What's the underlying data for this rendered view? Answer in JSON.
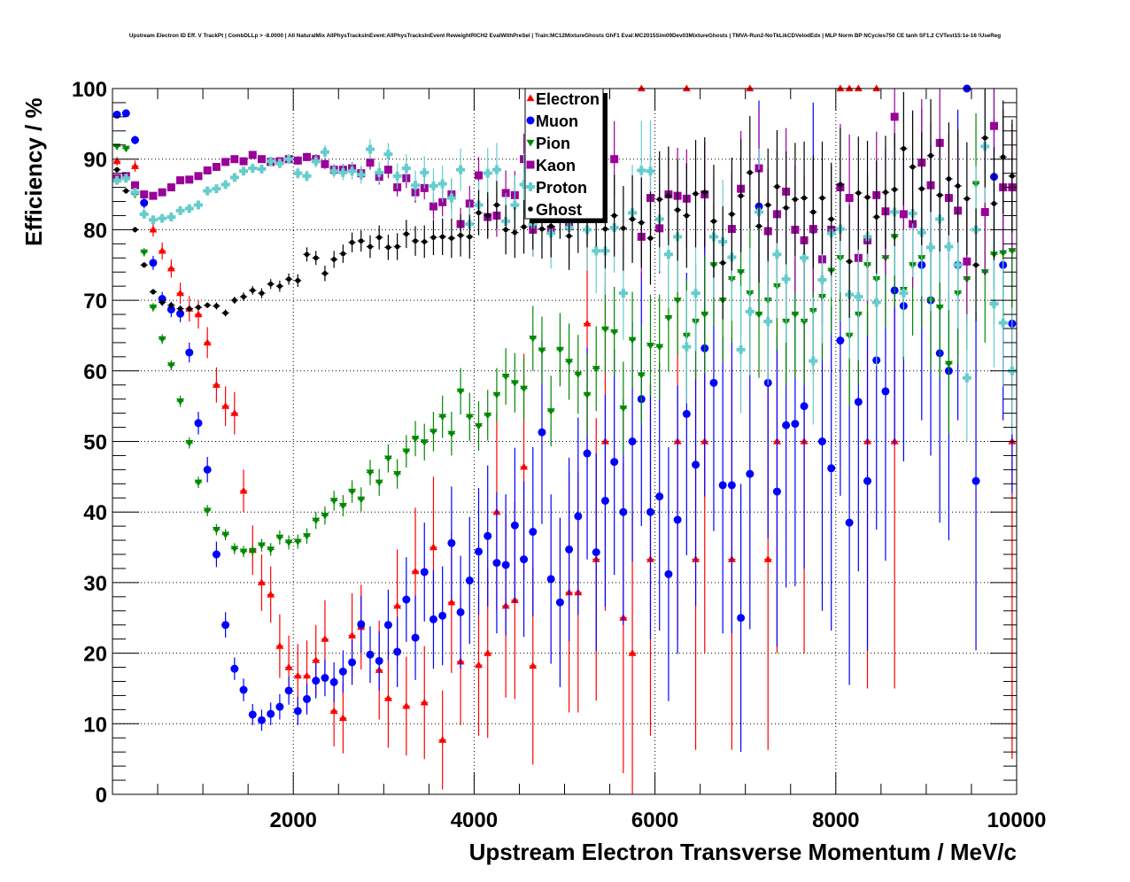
{
  "chart_data": {
    "type": "scatter",
    "title": "Upstream Electron ID Eff. V TrackPt | CombDLLp > -8.0000 | All NaturalMix AllPhysTracksInEvent:AllPhysTracksInEvent ReweightRICH2 EvalWithPreSel | Train:MC12MixtureGhosts GhF1 Eval:MC2015Sim09Dev03MixtureGhosts | TMVA-Run2-NoTkLikCDVelodEdx | MLP Norm BP NCycles750 CE tanh SF1.2 CVTest15:1e-16 !UseReg",
    "xlabel": "Upstream Electron Transverse Momentum / MeV/c",
    "ylabel": "Efficiency / %",
    "xlim": [
      0,
      10000
    ],
    "ylim": [
      0,
      100
    ],
    "xticks": [
      "2000",
      "4000",
      "6000",
      "8000",
      "10000"
    ],
    "xtick_values": [
      2000,
      4000,
      6000,
      8000,
      10000
    ],
    "yticks": [
      "0",
      "10",
      "20",
      "30",
      "40",
      "50",
      "60",
      "70",
      "80",
      "90",
      "100"
    ],
    "grid": true,
    "legend_position": "top-center",
    "bin_width": 100,
    "x_start": 50,
    "series": [
      {
        "name": "Electron",
        "color": "#ff0000",
        "marker": "triangle-up",
        "y": [
          89.7,
          null,
          89,
          null,
          80,
          77,
          74.5,
          71,
          68.8,
          68,
          64,
          58,
          55,
          54,
          43,
          34.6,
          30,
          28.3,
          21,
          18,
          16.8,
          16.8,
          19,
          22,
          11.8,
          10.8,
          22.5,
          23.7,
          null,
          17.6,
          13.6,
          26.7,
          12.5,
          31.6,
          13,
          35,
          7.7,
          27.2,
          18.8,
          null,
          18.3,
          20,
          40,
          26.7,
          27.5,
          46.4,
          18.2,
          null,
          null,
          null,
          28.6,
          28.6,
          66.7,
          33.3,
          50,
          null,
          25,
          20,
          100,
          33.3,
          null,
          null,
          50,
          100,
          33.3,
          50,
          null,
          null,
          33.3,
          null,
          100,
          null,
          33.3,
          50,
          null,
          null,
          50,
          null,
          null,
          null,
          100,
          100,
          100,
          50,
          100,
          null,
          50,
          null,
          null,
          null,
          null,
          null,
          null,
          null,
          null,
          null,
          null,
          null,
          null,
          50
        ],
        "err": [
          0.6,
          null,
          0.8,
          null,
          1,
          1.2,
          1.3,
          1.5,
          1.8,
          2,
          2.2,
          2.5,
          2.8,
          3,
          3,
          3.5,
          4,
          4,
          4.5,
          4.5,
          4.5,
          5,
          5,
          5.5,
          5,
          5,
          6,
          6,
          null,
          7,
          7,
          8,
          7,
          9,
          8,
          10,
          7,
          10,
          9,
          null,
          10,
          12,
          14,
          13,
          14,
          16,
          14,
          null,
          null,
          null,
          17,
          17,
          20,
          20,
          24,
          null,
          22,
          20,
          0,
          25,
          null,
          null,
          28,
          0,
          27,
          30,
          null,
          null,
          27,
          null,
          0,
          null,
          27,
          30,
          null,
          null,
          30,
          null,
          null,
          null,
          0,
          0,
          0,
          35,
          0,
          null,
          35,
          null,
          null,
          null,
          null,
          null,
          null,
          null,
          null,
          null,
          null,
          null,
          null,
          45
        ]
      },
      {
        "name": "Muon",
        "color": "#0000ff",
        "marker": "circle",
        "y": [
          96.3,
          96.5,
          92.7,
          83.8,
          75.3,
          70.2,
          68.7,
          68.1,
          62.6,
          52.6,
          46,
          34,
          24,
          17.8,
          14.8,
          11.3,
          10.5,
          11.4,
          12.4,
          14.7,
          11.8,
          13.5,
          16.1,
          16.5,
          15.9,
          17.4,
          18.7,
          24.1,
          19.8,
          18.9,
          24,
          20.2,
          27.6,
          22.2,
          31.5,
          24.8,
          25.3,
          35.6,
          25.8,
          30.3,
          34.4,
          36.6,
          32.8,
          32.5,
          38.1,
          33.3,
          37.2,
          51.3,
          30.5,
          27.2,
          34.7,
          39.4,
          48.3,
          34.3,
          41.6,
          47.1,
          40,
          50,
          56,
          40,
          42.2,
          31.2,
          38.9,
          53.9,
          46.7,
          63.2,
          58.3,
          43.8,
          43.8,
          25,
          45.4,
          83.3,
          58.3,
          42.9,
          52.3,
          52.5,
          55,
          80,
          50,
          46.2,
          64.3,
          38.5,
          55.6,
          44.4,
          61.5,
          57.1,
          71.4,
          69.2,
          null,
          75,
          70,
          62.5,
          60,
          75,
          100,
          44.4,
          null,
          87.5,
          75,
          66.7
        ],
        "err": [
          0.4,
          0.4,
          0.6,
          0.8,
          1,
          1,
          1.1,
          1.2,
          1.4,
          1.6,
          1.8,
          1.8,
          1.8,
          1.6,
          1.6,
          1.5,
          1.5,
          1.6,
          1.8,
          2,
          2,
          2.2,
          2.5,
          2.6,
          2.8,
          3,
          3.2,
          4,
          4,
          4.2,
          5,
          5,
          6,
          6,
          7,
          7,
          7,
          8,
          8,
          9,
          9,
          10,
          10,
          10,
          11,
          11,
          12,
          13,
          12,
          12,
          13,
          14,
          15,
          14,
          15,
          16,
          16,
          17,
          18,
          18,
          19,
          18,
          19,
          20,
          20,
          21,
          21,
          21,
          21,
          19,
          22,
          15,
          22,
          22,
          23,
          23,
          23,
          18,
          24,
          23,
          22,
          23,
          24,
          24,
          24,
          24,
          22,
          22,
          null,
          22,
          22,
          24,
          24,
          22,
          0,
          24,
          null,
          16,
          22,
          24
        ]
      },
      {
        "name": "Pion",
        "color": "#008800",
        "marker": "triangle-down",
        "y": [
          91.8,
          91.5,
          85,
          76.8,
          69,
          64.5,
          60.8,
          55.7,
          49.8,
          44.2,
          40.2,
          37.5,
          36.8,
          34.8,
          34.4,
          34.5,
          35.3,
          34.7,
          36.4,
          35.7,
          35.8,
          36.6,
          38.8,
          39.5,
          41.6,
          40.9,
          42.9,
          41.8,
          45.6,
          44.2,
          47.6,
          45.4,
          48.6,
          50.4,
          49.9,
          51.4,
          53.5,
          51.1,
          57.1,
          53.5,
          52.2,
          53.7,
          56.6,
          59.2,
          58.3,
          57.5,
          64.6,
          62.9,
          54.3,
          63,
          61.3,
          59.5,
          56.6,
          60.3,
          65.9,
          65.5,
          54.7,
          64.4,
          59.4,
          63.6,
          63.4,
          67.5,
          70,
          65,
          67,
          68,
          75,
          70,
          73,
          74,
          71,
          68,
          70,
          72,
          67,
          68,
          67,
          68.5,
          70.5,
          74.2,
          76,
          65,
          68,
          75,
          73,
          76,
          79,
          71.5,
          75,
          76,
          70,
          69,
          61,
          71,
          73,
          86.5,
          74,
          76.5,
          76.7,
          77
        ],
        "err": [
          0.4,
          0.4,
          0.5,
          0.6,
          0.6,
          0.7,
          0.7,
          0.8,
          0.8,
          0.8,
          0.8,
          0.8,
          0.8,
          0.8,
          0.8,
          0.8,
          0.9,
          0.9,
          1,
          1,
          1,
          1.1,
          1.2,
          1.3,
          1.4,
          1.5,
          1.6,
          1.7,
          1.8,
          1.9,
          2,
          2.1,
          2.3,
          2.5,
          2.6,
          2.8,
          3,
          3.1,
          3.3,
          3.4,
          3.5,
          3.6,
          3.8,
          4,
          4.2,
          4.4,
          4.6,
          4.8,
          5,
          5.2,
          5.4,
          5.6,
          5.8,
          6,
          6.2,
          6.4,
          6.6,
          6.8,
          7,
          7.2,
          7.4,
          7.6,
          7.8,
          8,
          8.2,
          8.4,
          8.6,
          8.8,
          9,
          9,
          9,
          9,
          9,
          9,
          9,
          9,
          9,
          9,
          9,
          9,
          9,
          10,
          10,
          10,
          10,
          10,
          10,
          10,
          10,
          10,
          10,
          10,
          10,
          10,
          10,
          10,
          10,
          10,
          10,
          10
        ]
      },
      {
        "name": "Kaon",
        "color": "#990099",
        "marker": "square",
        "y": [
          87.3,
          87.6,
          86.3,
          85,
          84.8,
          85.3,
          86,
          87,
          87.1,
          87.6,
          88.4,
          88.9,
          89.6,
          90,
          89.7,
          90.6,
          90,
          89.6,
          89.7,
          90,
          89.8,
          90.3,
          90,
          89.3,
          88.5,
          88.5,
          88.7,
          88,
          89.5,
          87.5,
          88.5,
          86,
          87.3,
          85.3,
          85.9,
          83.3,
          83.9,
          85,
          80.8,
          83.7,
          87.7,
          81.8,
          82,
          85.2,
          84.9,
          90,
          80,
          null,
          80,
          null,
          80.5,
          84.5,
          null,
          82.5,
          null,
          90,
          null,
          null,
          79,
          84.5,
          80.2,
          85,
          84.8,
          84.4,
          null,
          85,
          null,
          null,
          80.1,
          85.8,
          null,
          88.7,
          79.8,
          82.2,
          85.4,
          80,
          78.5,
          80.1,
          75.8,
          80,
          86,
          84.5,
          76,
          78.5,
          84.9,
          82.6,
          96,
          82.2,
          80.8,
          89.5,
          86.3,
          92.3,
          84.5,
          82.7,
          75.5,
          null,
          82.5,
          94.7,
          86,
          86
        ],
        "err": [
          0.4,
          0.4,
          0.4,
          0.4,
          0.4,
          0.4,
          0.4,
          0.4,
          0.4,
          0.4,
          0.4,
          0.4,
          0.4,
          0.4,
          0.4,
          0.4,
          0.5,
          0.5,
          0.5,
          0.5,
          0.6,
          0.6,
          0.7,
          0.7,
          0.8,
          0.8,
          0.9,
          1,
          1,
          1.1,
          1.2,
          1.3,
          1.4,
          1.5,
          1.6,
          1.8,
          2,
          2.1,
          2.3,
          2.5,
          2.6,
          2.8,
          3,
          3.2,
          3.4,
          3.6,
          3.8,
          null,
          4,
          null,
          4.4,
          4.6,
          null,
          5,
          null,
          5.4,
          null,
          null,
          6,
          6.2,
          6.4,
          6.6,
          6.8,
          7,
          null,
          7.4,
          null,
          null,
          8,
          8.2,
          null,
          8.6,
          8.8,
          9,
          9,
          9,
          9,
          9,
          9,
          9,
          9,
          9,
          9,
          9,
          9,
          9,
          8,
          9,
          9,
          9,
          9,
          8,
          9,
          9,
          9,
          null,
          9,
          6,
          9,
          9
        ]
      },
      {
        "name": "Proton",
        "color": "#66cccc",
        "marker": "star",
        "y": [
          87,
          87.3,
          85.3,
          82.2,
          81.4,
          81.6,
          81.8,
          82.7,
          83,
          83.5,
          85.5,
          85.8,
          86.4,
          87.4,
          88.3,
          88.7,
          88.6,
          89.7,
          89.4,
          90,
          88,
          87.6,
          89.7,
          91,
          88.3,
          88.1,
          88.3,
          87.8,
          91.4,
          88.1,
          90.7,
          87.6,
          88.7,
          86.3,
          88.1,
          86.2,
          86.5,
          84.5,
          88.5,
          80.8,
          83.5,
          88,
          88.5,
          81.2,
          83.5,
          86.4,
          80.8,
          81.9,
          79.5,
          84.5,
          80.3,
          84,
          80,
          77,
          77,
          80.3,
          71,
          82.4,
          88.4,
          88.3,
          81.5,
          76.5,
          79,
          63.4,
          71,
          null,
          79,
          78.3,
          76.1,
          63,
          68.4,
          82.5,
          67,
          76.5,
          73,
          null,
          76,
          61.4,
          72.9,
          79.5,
          80.1,
          70.8,
          70.5,
          79,
          69.7,
          null,
          82.5,
          71,
          82.3,
          79.6,
          77.5,
          81.5,
          77.6,
          75,
          59,
          80,
          91.8,
          69.5,
          66.8,
          60
        ],
        "err": [
          0.4,
          0.4,
          0.4,
          0.4,
          0.4,
          0.4,
          0.4,
          0.4,
          0.4,
          0.4,
          0.4,
          0.4,
          0.5,
          0.5,
          0.5,
          0.6,
          0.6,
          0.6,
          0.7,
          0.7,
          0.8,
          0.8,
          0.9,
          1,
          1,
          1.1,
          1.2,
          1.3,
          1.4,
          1.5,
          1.6,
          1.8,
          2,
          2.1,
          2.3,
          2.5,
          2.6,
          2.8,
          3,
          3.2,
          3.4,
          3.6,
          3.8,
          4,
          4.2,
          4.4,
          4.6,
          4.8,
          5,
          5.2,
          5.4,
          5.6,
          5.8,
          6,
          6.2,
          6.4,
          6.6,
          6.8,
          7,
          7.2,
          7.4,
          7.6,
          7.8,
          8,
          8.2,
          null,
          8.6,
          8.8,
          9,
          9,
          9,
          9,
          9,
          9,
          9,
          null,
          9,
          9,
          9,
          9,
          9,
          9,
          9,
          9,
          9,
          null,
          9,
          9,
          9,
          9,
          9,
          9,
          9,
          9,
          9,
          9,
          8,
          9,
          9,
          9
        ]
      },
      {
        "name": "Ghost",
        "color": "#000000",
        "marker": "dot",
        "y": [
          88.5,
          85.5,
          80,
          75,
          71.2,
          69.7,
          69.3,
          68.8,
          68.8,
          69,
          69.3,
          69.2,
          68.2,
          70,
          70.5,
          71.4,
          71,
          72.3,
          72,
          73,
          72.8,
          76.5,
          76,
          73.8,
          75.8,
          76.6,
          78.2,
          78.4,
          77.6,
          78.9,
          77.5,
          77.6,
          79.4,
          78.4,
          78.3,
          78.9,
          79,
          78.8,
          79.2,
          79,
          82.4,
          82,
          83.5,
          80,
          79.6,
          80.4,
          81.2,
          80.1,
          80.5,
          83.3,
          79.1,
          81.7,
          82.7,
          83,
          80.1,
          82,
          80.2,
          81.5,
          81,
          78.8,
          84.3,
          84.8,
          82.8,
          82,
          85.1,
          85.3,
          81.2,
          75.3,
          82.2,
          84.8,
          88.1,
          80.5,
          83.5,
          86.1,
          83.1,
          84.3,
          84.5,
          82.5,
          84.5,
          81.5,
          86.4,
          75.5,
          85.2,
          84.6,
          81.8,
          85.3,
          85.7,
          91.5,
          88.9,
          85.8,
          90.5,
          84.9,
          87.2,
          86.2,
          84.4,
          75,
          93,
          83.7,
          90.3,
          87.6
        ],
        "err": [
          0.4,
          0.4,
          0.4,
          0.4,
          0.4,
          0.4,
          0.4,
          0.4,
          0.4,
          0.4,
          0.4,
          0.5,
          0.5,
          0.5,
          0.6,
          0.6,
          0.7,
          0.7,
          0.8,
          0.8,
          0.9,
          1,
          1,
          1.1,
          1.2,
          1.3,
          1.4,
          1.5,
          1.6,
          1.7,
          1.8,
          1.9,
          2,
          2.1,
          2.3,
          2.5,
          2.6,
          2.8,
          3,
          3.1,
          3.2,
          3.3,
          3.4,
          3.5,
          3.6,
          3.8,
          4,
          4.2,
          4.4,
          4.6,
          4.8,
          5,
          5.2,
          5.4,
          5.6,
          5.8,
          6,
          6.2,
          6.4,
          6.6,
          6.8,
          7,
          7.2,
          7.4,
          7.6,
          7.8,
          8,
          8,
          8,
          8,
          8,
          8,
          8,
          8,
          8,
          8,
          8,
          8,
          8,
          8,
          8,
          8,
          8,
          8,
          8,
          8,
          8,
          8,
          8,
          8,
          8,
          8,
          8,
          8,
          8,
          8,
          7,
          8,
          8,
          8
        ]
      }
    ]
  }
}
